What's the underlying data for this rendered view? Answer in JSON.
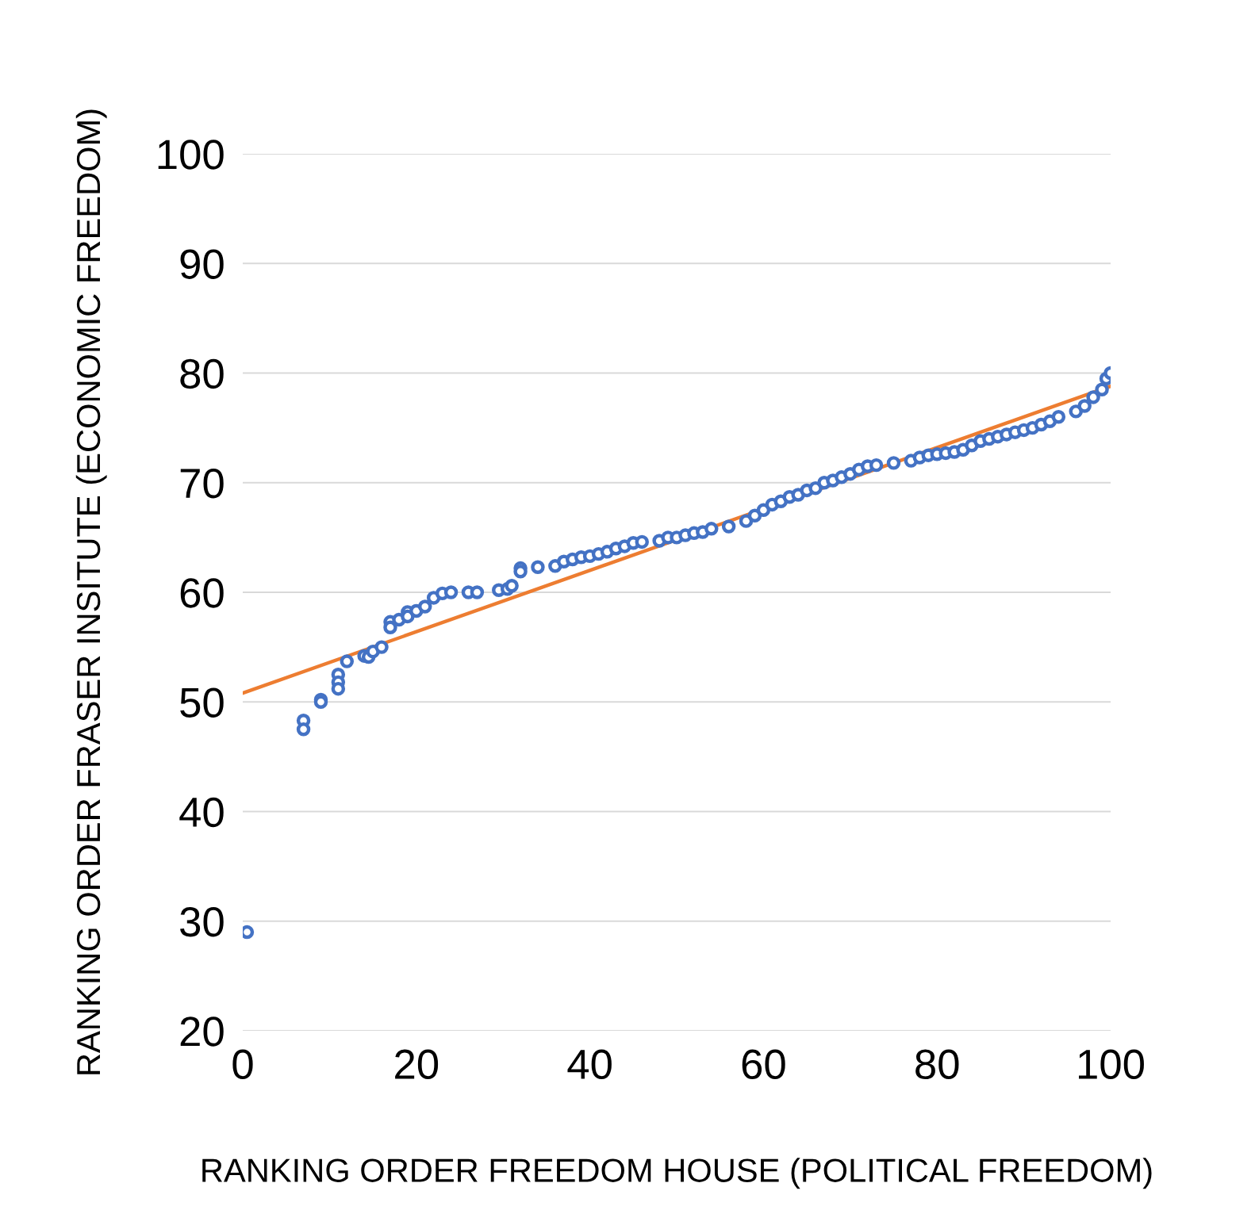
{
  "chart_data": {
    "type": "scatter",
    "xlabel": "RANKING ORDER FREEDOM HOUSE (POLITICAL FREEDOM)",
    "ylabel": "RANKING ORDER FRASER INSITUTE (ECONOMIC FREEDOM)",
    "xlim": [
      0,
      100
    ],
    "ylim": [
      20,
      100
    ],
    "xticks": [
      0,
      20,
      40,
      60,
      80,
      100
    ],
    "yticks": [
      20,
      30,
      40,
      50,
      60,
      70,
      80,
      90,
      100
    ],
    "grid": "y",
    "series": [
      {
        "marker": "circle",
        "color": "#4472c4",
        "x": [
          0.5,
          7,
          7,
          9,
          9,
          11,
          11,
          11,
          12,
          14,
          14.5,
          15,
          16,
          17,
          17,
          18,
          19,
          19,
          20,
          21,
          22,
          23,
          24,
          26,
          27,
          29.5,
          30.5,
          31,
          32,
          32,
          34,
          36,
          37,
          38,
          39,
          40,
          41,
          42,
          43,
          44,
          45,
          46,
          48,
          49,
          50,
          51,
          52,
          53,
          54,
          56,
          58,
          59,
          60,
          61,
          62,
          63,
          64,
          65,
          66,
          67,
          68,
          69,
          70,
          71,
          72,
          73,
          75,
          77,
          78,
          79,
          80,
          81,
          82,
          83,
          84,
          85,
          86,
          87,
          88,
          89,
          90,
          91,
          92,
          93,
          94,
          96,
          97,
          98,
          99,
          99.5,
          100
        ],
        "values": [
          29,
          48.3,
          47.5,
          50.2,
          50,
          52.5,
          51.8,
          51.2,
          53.7,
          54.2,
          54.1,
          54.6,
          55,
          57.3,
          56.8,
          57.5,
          58.2,
          57.8,
          58.3,
          58.7,
          59.5,
          59.9,
          60,
          60,
          60,
          60.2,
          60.3,
          60.6,
          62.2,
          61.9,
          62.3,
          62.4,
          62.8,
          63,
          63.2,
          63.3,
          63.5,
          63.7,
          64,
          64.2,
          64.5,
          64.6,
          64.7,
          65,
          65,
          65.2,
          65.4,
          65.5,
          65.8,
          66,
          66.5,
          67,
          67.5,
          68,
          68.3,
          68.7,
          68.9,
          69.3,
          69.5,
          70,
          70.2,
          70.5,
          70.8,
          71.2,
          71.5,
          71.6,
          71.8,
          72,
          72.3,
          72.5,
          72.6,
          72.7,
          72.8,
          73,
          73.4,
          73.8,
          74,
          74.2,
          74.4,
          74.6,
          74.8,
          75,
          75.3,
          75.6,
          76,
          76.5,
          77,
          77.8,
          78.5,
          79.5,
          80
        ]
      },
      {
        "type": "line",
        "color": "#ed7d31",
        "x": [
          0,
          100
        ],
        "values": [
          50.8,
          78.8
        ]
      }
    ]
  }
}
